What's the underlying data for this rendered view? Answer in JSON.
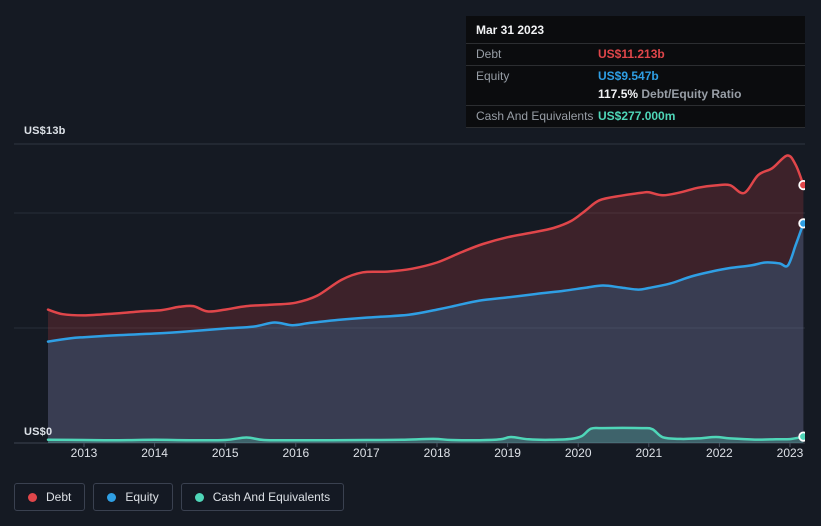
{
  "colors": {
    "background": "#151a23",
    "debt": "#e0464a",
    "equity": "#2f9fe4",
    "cash": "#4fd6b8",
    "grid_top": "#2e3542",
    "grid_mid": "#272d39",
    "axis_base": "#3d4450",
    "tick": "#4a5160"
  },
  "tooltip": {
    "date": "Mar 31 2023",
    "debt_label": "Debt",
    "debt_value": "US$11.213b",
    "equity_label": "Equity",
    "equity_value": "US$9.547b",
    "ratio_value": "117.5%",
    "ratio_label": "Debt/Equity Ratio",
    "cash_label": "Cash And Equivalents",
    "cash_value": "US$277.000m"
  },
  "legend": {
    "items": [
      {
        "label": "Debt",
        "color": "#e0464a"
      },
      {
        "label": "Equity",
        "color": "#2f9fe4"
      },
      {
        "label": "Cash And Equivalents",
        "color": "#4fd6b8"
      }
    ]
  },
  "chart_data": {
    "type": "area",
    "y_unit": "US$ billions",
    "y_axis_top_label": "US$13b",
    "y_axis_bottom_label": "US$0",
    "ylim": [
      0,
      13
    ],
    "xlim": [
      2012.45,
      2023.25
    ],
    "x_ticks": [
      2013,
      2014,
      2015,
      2016,
      2017,
      2018,
      2019,
      2020,
      2021,
      2022,
      2023
    ],
    "gridline_values": [
      0,
      5,
      10,
      13
    ],
    "grid": true,
    "legend_position": "bottom-left",
    "hover_point": {
      "date": "Mar 31 2023",
      "debt": 11.213,
      "equity": 9.547,
      "cash": 0.277,
      "debt_equity_ratio_pct": 117.5
    },
    "series": [
      {
        "name": "Debt",
        "color": "#e0464a",
        "fill": "rgba(224,70,69,0.20)",
        "points": [
          [
            2012.49,
            5.8
          ],
          [
            2012.7,
            5.6
          ],
          [
            2013.0,
            5.55
          ],
          [
            2013.4,
            5.62
          ],
          [
            2013.8,
            5.72
          ],
          [
            2014.1,
            5.78
          ],
          [
            2014.35,
            5.92
          ],
          [
            2014.55,
            5.95
          ],
          [
            2014.75,
            5.72
          ],
          [
            2015.0,
            5.8
          ],
          [
            2015.3,
            5.95
          ],
          [
            2015.7,
            6.02
          ],
          [
            2016.0,
            6.1
          ],
          [
            2016.3,
            6.4
          ],
          [
            2016.65,
            7.1
          ],
          [
            2016.95,
            7.42
          ],
          [
            2017.3,
            7.45
          ],
          [
            2017.65,
            7.58
          ],
          [
            2018.0,
            7.85
          ],
          [
            2018.35,
            8.3
          ],
          [
            2018.65,
            8.65
          ],
          [
            2019.0,
            8.95
          ],
          [
            2019.35,
            9.15
          ],
          [
            2019.65,
            9.35
          ],
          [
            2019.9,
            9.65
          ],
          [
            2020.1,
            10.1
          ],
          [
            2020.3,
            10.55
          ],
          [
            2020.6,
            10.75
          ],
          [
            2020.9,
            10.88
          ],
          [
            2021.0,
            10.9
          ],
          [
            2021.2,
            10.77
          ],
          [
            2021.45,
            10.9
          ],
          [
            2021.7,
            11.1
          ],
          [
            2021.95,
            11.2
          ],
          [
            2022.15,
            11.21
          ],
          [
            2022.35,
            10.87
          ],
          [
            2022.55,
            11.65
          ],
          [
            2022.75,
            11.95
          ],
          [
            2022.96,
            12.5
          ],
          [
            2023.08,
            12.1
          ],
          [
            2023.19,
            11.213
          ]
        ]
      },
      {
        "name": "Equity",
        "color": "#2f9fe4",
        "fill": "rgba(47,159,228,0.22)",
        "points": [
          [
            2012.49,
            4.41
          ],
          [
            2012.8,
            4.55
          ],
          [
            2013.0,
            4.6
          ],
          [
            2013.5,
            4.69
          ],
          [
            2014.0,
            4.76
          ],
          [
            2014.5,
            4.86
          ],
          [
            2015.0,
            4.98
          ],
          [
            2015.4,
            5.06
          ],
          [
            2015.7,
            5.24
          ],
          [
            2015.95,
            5.12
          ],
          [
            2016.2,
            5.22
          ],
          [
            2016.6,
            5.35
          ],
          [
            2017.0,
            5.45
          ],
          [
            2017.6,
            5.58
          ],
          [
            2018.0,
            5.8
          ],
          [
            2018.25,
            5.96
          ],
          [
            2018.6,
            6.19
          ],
          [
            2019.0,
            6.33
          ],
          [
            2019.4,
            6.48
          ],
          [
            2019.8,
            6.62
          ],
          [
            2020.1,
            6.75
          ],
          [
            2020.35,
            6.85
          ],
          [
            2020.6,
            6.76
          ],
          [
            2020.85,
            6.67
          ],
          [
            2021.0,
            6.74
          ],
          [
            2021.3,
            6.93
          ],
          [
            2021.6,
            7.24
          ],
          [
            2021.9,
            7.46
          ],
          [
            2022.15,
            7.61
          ],
          [
            2022.45,
            7.72
          ],
          [
            2022.65,
            7.85
          ],
          [
            2022.85,
            7.81
          ],
          [
            2022.97,
            7.72
          ],
          [
            2023.08,
            8.6
          ],
          [
            2023.19,
            9.547
          ]
        ]
      },
      {
        "name": "Cash And Equivalents",
        "color": "#4fd6b8",
        "fill": "rgba(79,214,184,0.25)",
        "points": [
          [
            2012.49,
            0.14
          ],
          [
            2013.0,
            0.13
          ],
          [
            2013.5,
            0.12
          ],
          [
            2014.0,
            0.14
          ],
          [
            2014.5,
            0.12
          ],
          [
            2015.0,
            0.13
          ],
          [
            2015.3,
            0.24
          ],
          [
            2015.55,
            0.13
          ],
          [
            2016.0,
            0.12
          ],
          [
            2016.5,
            0.12
          ],
          [
            2017.0,
            0.13
          ],
          [
            2017.5,
            0.14
          ],
          [
            2017.95,
            0.18
          ],
          [
            2018.2,
            0.13
          ],
          [
            2018.6,
            0.12
          ],
          [
            2018.9,
            0.16
          ],
          [
            2019.05,
            0.26
          ],
          [
            2019.3,
            0.16
          ],
          [
            2019.6,
            0.14
          ],
          [
            2019.9,
            0.18
          ],
          [
            2020.05,
            0.3
          ],
          [
            2020.18,
            0.62
          ],
          [
            2020.35,
            0.65
          ],
          [
            2020.9,
            0.65
          ],
          [
            2021.05,
            0.6
          ],
          [
            2021.2,
            0.25
          ],
          [
            2021.45,
            0.18
          ],
          [
            2021.7,
            0.2
          ],
          [
            2021.95,
            0.26
          ],
          [
            2022.15,
            0.2
          ],
          [
            2022.5,
            0.15
          ],
          [
            2022.8,
            0.16
          ],
          [
            2023.0,
            0.17
          ],
          [
            2023.19,
            0.277
          ]
        ]
      }
    ]
  }
}
